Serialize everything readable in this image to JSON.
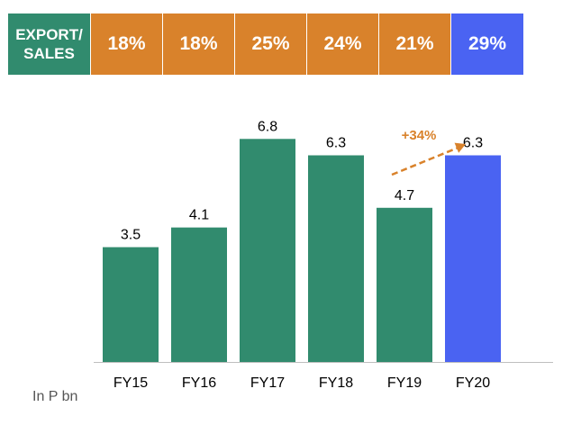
{
  "header": {
    "label": "EXPORT/\nSALES",
    "cells": [
      {
        "value": "18%",
        "color": "#d9822b"
      },
      {
        "value": "18%",
        "color": "#d9822b"
      },
      {
        "value": "25%",
        "color": "#d9822b"
      },
      {
        "value": "24%",
        "color": "#d9822b"
      },
      {
        "value": "21%",
        "color": "#d9822b"
      },
      {
        "value": "29%",
        "color": "#4a63f2"
      }
    ],
    "label_color": "#318b6e"
  },
  "unit_note": "In P bn",
  "chart_data": {
    "type": "bar",
    "categories": [
      "FY15",
      "FY16",
      "FY17",
      "FY18",
      "FY19",
      "FY20"
    ],
    "values": [
      3.5,
      4.1,
      6.8,
      6.3,
      4.7,
      6.3
    ],
    "data_labels": [
      "3.5",
      "4.1",
      "6.8",
      "6.3",
      "4.7",
      "6.3"
    ],
    "bar_colors": [
      "#318b6e",
      "#318b6e",
      "#318b6e",
      "#318b6e",
      "#318b6e",
      "#4a63f2"
    ],
    "ylim": [
      0,
      7.0
    ],
    "grid": false,
    "annotation": {
      "text": "+34%",
      "from": "FY19",
      "to": "FY20",
      "color": "#d9822b"
    }
  }
}
